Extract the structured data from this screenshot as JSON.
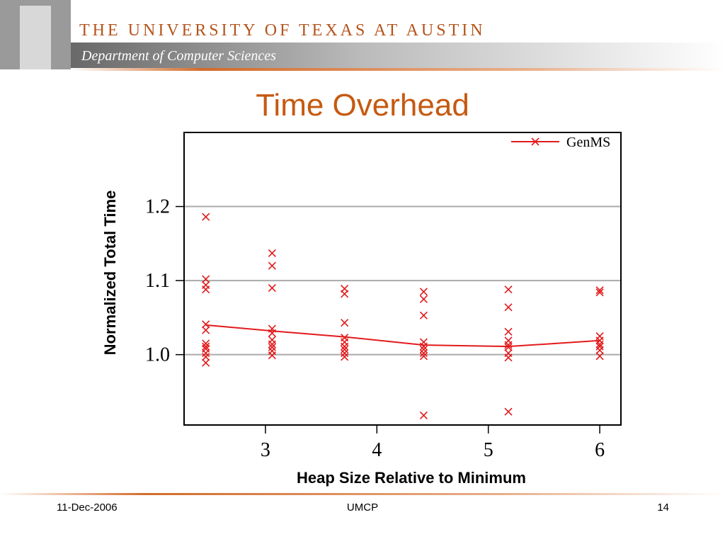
{
  "header": {
    "university": "THE UNIVERSITY OF TEXAS AT AUSTIN",
    "department": "Department of Computer Sciences"
  },
  "slide": {
    "title": "Time Overhead"
  },
  "footer": {
    "date": "11-Dec-2006",
    "center": "UMCP",
    "page": "14"
  },
  "chart_data": {
    "type": "line",
    "xlabel": "Heap Size Relative to Minimum",
    "ylabel": "Normalized Total Time",
    "xlim": [
      2.27,
      6.19
    ],
    "xticks": [
      3,
      4,
      5,
      6
    ],
    "ylim": [
      0.905,
      1.3
    ],
    "yticks": [
      {
        "value": 1,
        "label": "1.0"
      },
      1.1,
      1.2
    ],
    "grid": true,
    "legend": "top-right",
    "series": [
      {
        "name": "GenMS",
        "color": "#e31a1c",
        "x": [
          2.465,
          3.06,
          3.71,
          4.42,
          5.18,
          6.0
        ],
        "values": [
          1.04,
          1.032,
          1.024,
          1.013,
          1.011,
          1.019
        ]
      }
    ],
    "points": {
      "color": "#e31a1c",
      "x": [
        2.465,
        2.465,
        2.465,
        2.465,
        2.465,
        2.465,
        2.465,
        2.465,
        2.465,
        2.465,
        2.465,
        2.465,
        3.06,
        3.06,
        3.06,
        3.06,
        3.06,
        3.06,
        3.06,
        3.06,
        3.06,
        3.06,
        3.71,
        3.71,
        3.71,
        3.71,
        3.71,
        3.71,
        3.71,
        3.71,
        3.71,
        4.42,
        4.42,
        4.42,
        4.42,
        4.42,
        4.42,
        4.42,
        4.42,
        4.42,
        5.18,
        5.18,
        5.18,
        5.18,
        5.18,
        5.18,
        5.18,
        5.18,
        5.18,
        6.0,
        6.0,
        6.0,
        6.0,
        6.0,
        6.0,
        6.0,
        6.0
      ],
      "y": [
        1.186,
        1.102,
        1.094,
        1.088,
        1.041,
        1.033,
        1.015,
        1.011,
        1.008,
        1.002,
        0.997,
        0.989,
        1.137,
        1.12,
        1.09,
        1.035,
        1.029,
        1.02,
        1.014,
        1.01,
        1.005,
        0.999,
        1.089,
        1.082,
        1.043,
        1.023,
        1.017,
        1.011,
        1.007,
        1.002,
        0.997,
        1.085,
        1.075,
        1.053,
        1.017,
        1.011,
        1.007,
        1.002,
        0.998,
        0.918,
        1.088,
        1.064,
        1.031,
        1.019,
        1.013,
        1.01,
        1.002,
        0.996,
        0.923,
        1.087,
        1.084,
        1.025,
        1.019,
        1.014,
        1.011,
        1.006,
        0.998
      ]
    }
  }
}
